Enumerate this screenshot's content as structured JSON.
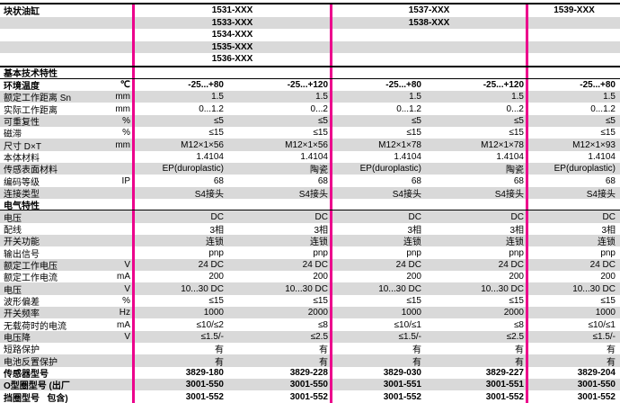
{
  "title": "块状油缸",
  "style": {
    "accent_color": "#ec008c",
    "stripe_color": "#d9d9d9",
    "text_color": "#000000"
  },
  "header": {
    "rows": [
      {
        "label": "块状油缸",
        "g1": "1531-XXX",
        "g2": "1537-XXX",
        "g3": "1539-XXX",
        "shade": "white"
      },
      {
        "label": "",
        "g1": "1533-XXX",
        "g2": "1538-XXX",
        "g3": "",
        "shade": "gray"
      },
      {
        "label": "",
        "g1": "1534-XXX",
        "g2": "",
        "g3": "",
        "shade": "white"
      },
      {
        "label": "",
        "g1": "1535-XXX",
        "g2": "",
        "g3": "",
        "shade": "gray"
      },
      {
        "label": "",
        "g1": "1536-XXX",
        "g2": "",
        "g3": "",
        "shade": "white"
      }
    ]
  },
  "body": {
    "rows": [
      {
        "section": true,
        "label": "基本技术特性",
        "unit": "",
        "shade": "white",
        "values": [
          "",
          "",
          "",
          "",
          ""
        ]
      },
      {
        "label": "环境温度",
        "unit": "℃",
        "bold": true,
        "shade": "white",
        "values": [
          "-25...+80",
          "-25...+120",
          "-25...+80",
          "-25...+120",
          "-25...+80"
        ]
      },
      {
        "label": "额定工作距离 Sn",
        "unit": "mm",
        "shade": "gray",
        "values": [
          "1.5",
          "1.5",
          "1.5",
          "1.5",
          "1.5"
        ]
      },
      {
        "label": "实际工作距离",
        "unit": "mm",
        "shade": "white",
        "values": [
          "0...1.2",
          "0...2",
          "0...1.2",
          "0...2",
          "0...1.2"
        ]
      },
      {
        "label": "可重复性",
        "unit": "%",
        "shade": "gray",
        "values": [
          "≤5",
          "≤5",
          "≤5",
          "≤5",
          "≤5"
        ]
      },
      {
        "label": "磁滞",
        "unit": "%",
        "shade": "white",
        "values": [
          "≤15",
          "≤15",
          "≤15",
          "≤15",
          "≤15"
        ]
      },
      {
        "label": "尺寸 D×T",
        "unit": "mm",
        "shade": "gray",
        "values": [
          "M12×1×56",
          "M12×1×56",
          "M12×1×78",
          "M12×1×78",
          "M12×1×93"
        ]
      },
      {
        "label": "本体材料",
        "unit": "",
        "shade": "white",
        "values": [
          "1.4104",
          "1.4104",
          "1.4104",
          "1.4104",
          "1.4104"
        ]
      },
      {
        "label": "传感表面材料",
        "unit": "",
        "shade": "gray",
        "values": [
          "EP(duroplastic)",
          "陶瓷",
          "EP(duroplastic)",
          "陶瓷",
          "EP(duroplastic)"
        ]
      },
      {
        "label": "编码等级",
        "unit": "IP",
        "shade": "white",
        "values": [
          "68",
          "68",
          "68",
          "68",
          "68"
        ]
      },
      {
        "label": "连接类型",
        "unit": "",
        "shade": "gray",
        "values": [
          "S4接头",
          "S4接头",
          "S4接头",
          "S4接头",
          "S4接头"
        ]
      },
      {
        "section": true,
        "label": "电气特性",
        "unit": "",
        "shade": "white",
        "values": [
          "",
          "",
          "",
          "",
          ""
        ]
      },
      {
        "label": "电压",
        "unit": "",
        "shade": "gray",
        "values": [
          "DC",
          "DC",
          "DC",
          "DC",
          "DC"
        ]
      },
      {
        "label": "配线",
        "unit": "",
        "shade": "white",
        "values": [
          "3相",
          "3相",
          "3相",
          "3相",
          "3相"
        ]
      },
      {
        "label": "开关功能",
        "unit": "",
        "shade": "gray",
        "values": [
          "连锁",
          "连锁",
          "连锁",
          "连锁",
          "连锁"
        ]
      },
      {
        "label": "输出信号",
        "unit": "",
        "shade": "white",
        "values": [
          "pnp",
          "pnp",
          "pnp",
          "pnp",
          "pnp"
        ]
      },
      {
        "label": "额定工作电压",
        "unit": "V",
        "shade": "gray",
        "values": [
          "24 DC",
          "24 DC",
          "24 DC",
          "24 DC",
          "24 DC"
        ]
      },
      {
        "label": "额定工作电流",
        "unit": "mA",
        "shade": "white",
        "values": [
          "200",
          "200",
          "200",
          "200",
          "200"
        ]
      },
      {
        "label": "电压",
        "unit": "V",
        "shade": "gray",
        "values": [
          "10...30 DC",
          "10...30 DC",
          "10...30 DC",
          "10...30 DC",
          "10...30 DC"
        ]
      },
      {
        "label": "波形偏差",
        "unit": "%",
        "shade": "white",
        "values": [
          "≤15",
          "≤15",
          "≤15",
          "≤15",
          "≤15"
        ]
      },
      {
        "label": "开关频率",
        "unit": "Hz",
        "shade": "gray",
        "values": [
          "1000",
          "2000",
          "1000",
          "2000",
          "1000"
        ]
      },
      {
        "label": "无载荷时的电流",
        "unit": "mA",
        "shade": "white",
        "values": [
          "≤10/≤2",
          "≤8",
          "≤10/≤1",
          "≤8",
          "≤10/≤1"
        ]
      },
      {
        "label": "电压降",
        "unit": "V",
        "shade": "gray",
        "values": [
          "≤1.5/-",
          "≤2.5",
          "≤1.5/-",
          "≤2.5",
          "≤1.5/-"
        ]
      },
      {
        "label": "短路保护",
        "unit": "",
        "shade": "white",
        "values": [
          "有",
          "有",
          "有",
          "有",
          "有"
        ]
      },
      {
        "label": "电池反置保护",
        "unit": "",
        "shade": "gray",
        "values": [
          "有",
          "有",
          "有",
          "有",
          "有"
        ]
      },
      {
        "label": "传感器型号",
        "unit": "",
        "bold": true,
        "shade": "white",
        "values": [
          "3829-180",
          "3829-228",
          "3829-030",
          "3829-227",
          "3829-204"
        ]
      },
      {
        "label": "O型圈型号 (出厂",
        "unit": "",
        "bold": true,
        "shade": "gray",
        "values": [
          "3001-550",
          "3001-550",
          "3001-551",
          "3001-551",
          "3001-550"
        ]
      },
      {
        "label": "挡圈型号   包含)",
        "unit": "",
        "bold": true,
        "shade": "white",
        "values": [
          "3001-552",
          "3001-552",
          "3001-552",
          "3001-552",
          "3001-552"
        ]
      }
    ]
  }
}
